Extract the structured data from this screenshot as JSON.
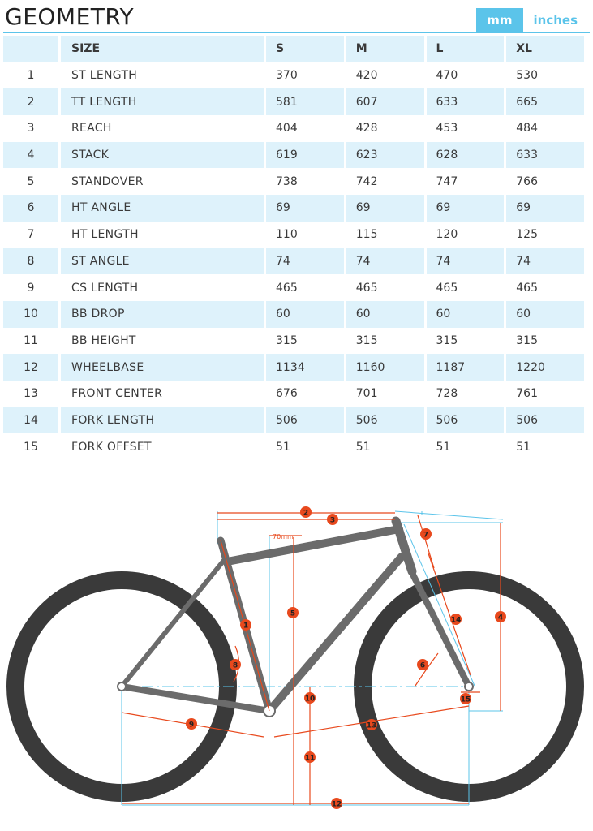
{
  "header": {
    "title": "GEOMETRY",
    "unit_mm": "mm",
    "unit_inches": "inches",
    "active_unit": "mm"
  },
  "colors": {
    "accent": "#5bc4ea",
    "row_tint": "#def2fb",
    "marker": "#e8491d",
    "frame": "#6b6b6b",
    "tire": "#3a3a3a"
  },
  "table": {
    "headers": [
      "",
      "SIZE",
      "S",
      "M",
      "L",
      "XL"
    ],
    "rows": [
      [
        "1",
        "ST LENGTH",
        "370",
        "420",
        "470",
        "530"
      ],
      [
        "2",
        "TT LENGTH",
        "581",
        "607",
        "633",
        "665"
      ],
      [
        "3",
        "REACH",
        "404",
        "428",
        "453",
        "484"
      ],
      [
        "4",
        "STACK",
        "619",
        "623",
        "628",
        "633"
      ],
      [
        "5",
        "STANDOVER",
        "738",
        "742",
        "747",
        "766"
      ],
      [
        "6",
        "HT ANGLE",
        "69",
        "69",
        "69",
        "69"
      ],
      [
        "7",
        "HT LENGTH",
        "110",
        "115",
        "120",
        "125"
      ],
      [
        "8",
        "ST ANGLE",
        "74",
        "74",
        "74",
        "74"
      ],
      [
        "9",
        "CS LENGTH",
        "465",
        "465",
        "465",
        "465"
      ],
      [
        "10",
        "BB DROP",
        "60",
        "60",
        "60",
        "60"
      ],
      [
        "11",
        "BB HEIGHT",
        "315",
        "315",
        "315",
        "315"
      ],
      [
        "12",
        "WHEELBASE",
        "1134",
        "1160",
        "1187",
        "1220"
      ],
      [
        "13",
        "FRONT CENTER",
        "676",
        "701",
        "728",
        "761"
      ],
      [
        "14",
        "FORK LENGTH",
        "506",
        "506",
        "506",
        "506"
      ],
      [
        "15",
        "FORK OFFSET",
        "51",
        "51",
        "51",
        "51"
      ]
    ]
  },
  "diagram": {
    "note_70mm": "70mm",
    "markers": [
      "1",
      "2",
      "3",
      "4",
      "5",
      "6",
      "7",
      "8",
      "9",
      "10",
      "11",
      "12",
      "13",
      "14",
      "15"
    ]
  }
}
